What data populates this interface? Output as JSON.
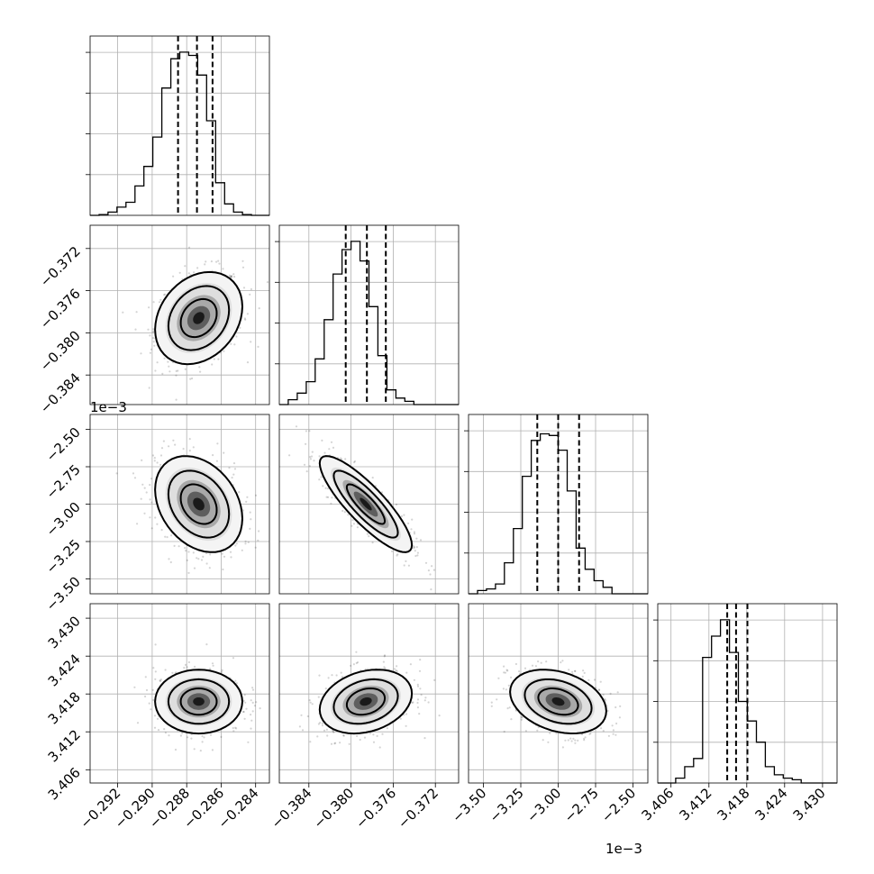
{
  "chart_data": {
    "type": "scatter",
    "subtype": "corner plot (pairwise 2D histograms with 1D marginal histograms)",
    "grid": true,
    "quantile_markers": "dashed vertical lines at 16%, 50%, 84% quantiles",
    "contour_levels": 3,
    "parameters": [
      {
        "index": 0,
        "range": [
          -0.2936,
          -0.2832
        ],
        "ticks": [
          "−0.292",
          "−0.290",
          "−0.288",
          "−0.286",
          "−0.284"
        ],
        "tick_values": [
          -0.292,
          -0.29,
          -0.288,
          -0.286,
          -0.284
        ],
        "offset_label": "",
        "mean": -0.2873,
        "sd": 0.0011,
        "quantiles": [
          -0.2885,
          -0.2874,
          -0.2865
        ],
        "hist_bins": [
          0.0,
          0.005,
          0.02,
          0.05,
          0.08,
          0.18,
          0.3,
          0.48,
          0.78,
          0.96,
          1.0,
          0.98,
          0.86,
          0.58,
          0.2,
          0.07,
          0.02,
          0.005,
          0.0,
          0.0
        ]
      },
      {
        "index": 1,
        "range": [
          -0.3868,
          -0.3698
        ],
        "ticks": [
          "−0.384",
          "−0.380",
          "−0.376",
          "−0.372"
        ],
        "tick_values": [
          -0.384,
          -0.38,
          -0.376,
          -0.372
        ],
        "offset_label": "",
        "mean": -0.3786,
        "sd": 0.0019,
        "quantiles": [
          -0.3805,
          -0.3785,
          -0.3767
        ],
        "hist_bins": [
          0.0,
          0.03,
          0.07,
          0.14,
          0.28,
          0.52,
          0.8,
          0.95,
          1.0,
          0.88,
          0.6,
          0.3,
          0.09,
          0.04,
          0.02,
          0.0,
          0.0,
          0.0,
          0.0,
          0.0
        ]
      },
      {
        "index": 2,
        "range": [
          -3.6,
          -2.4
        ],
        "ticks": [
          "−3.50",
          "−3.25",
          "−3.00",
          "−2.75",
          "−2.50"
        ],
        "tick_values": [
          -3.5,
          -3.25,
          -3.0,
          -2.75,
          -2.5
        ],
        "offset_label": "1e−3",
        "mean": -3.0,
        "sd": 0.14,
        "quantiles": [
          -3.14,
          -3.0,
          -2.86
        ],
        "hist_bins": [
          0.0,
          0.02,
          0.03,
          0.06,
          0.19,
          0.4,
          0.72,
          0.94,
          0.98,
          0.97,
          0.88,
          0.63,
          0.28,
          0.15,
          0.08,
          0.04,
          0.0,
          0.0,
          0.0,
          0.0
        ]
      },
      {
        "index": 3,
        "range": [
          3.4039,
          3.4323
        ],
        "ticks": [
          "3.406",
          "3.412",
          "3.418",
          "3.424",
          "3.430"
        ],
        "tick_values": [
          3.406,
          3.412,
          3.418,
          3.424,
          3.43
        ],
        "offset_label": "",
        "mean": 3.4168,
        "sd": 0.0022,
        "quantiles": [
          3.4149,
          3.4163,
          3.4181
        ],
        "hist_bins": [
          0.0,
          0.0,
          0.03,
          0.1,
          0.15,
          0.77,
          0.9,
          1.0,
          0.8,
          0.5,
          0.38,
          0.25,
          0.1,
          0.05,
          0.03,
          0.02,
          0.0,
          0.0,
          0.0,
          0.0
        ]
      }
    ],
    "correlations": {
      "1-0": 0.25,
      "2-0": -0.3,
      "2-1": -0.85,
      "3-0": 0.0,
      "3-1": 0.25,
      "3-2": -0.3
    }
  }
}
